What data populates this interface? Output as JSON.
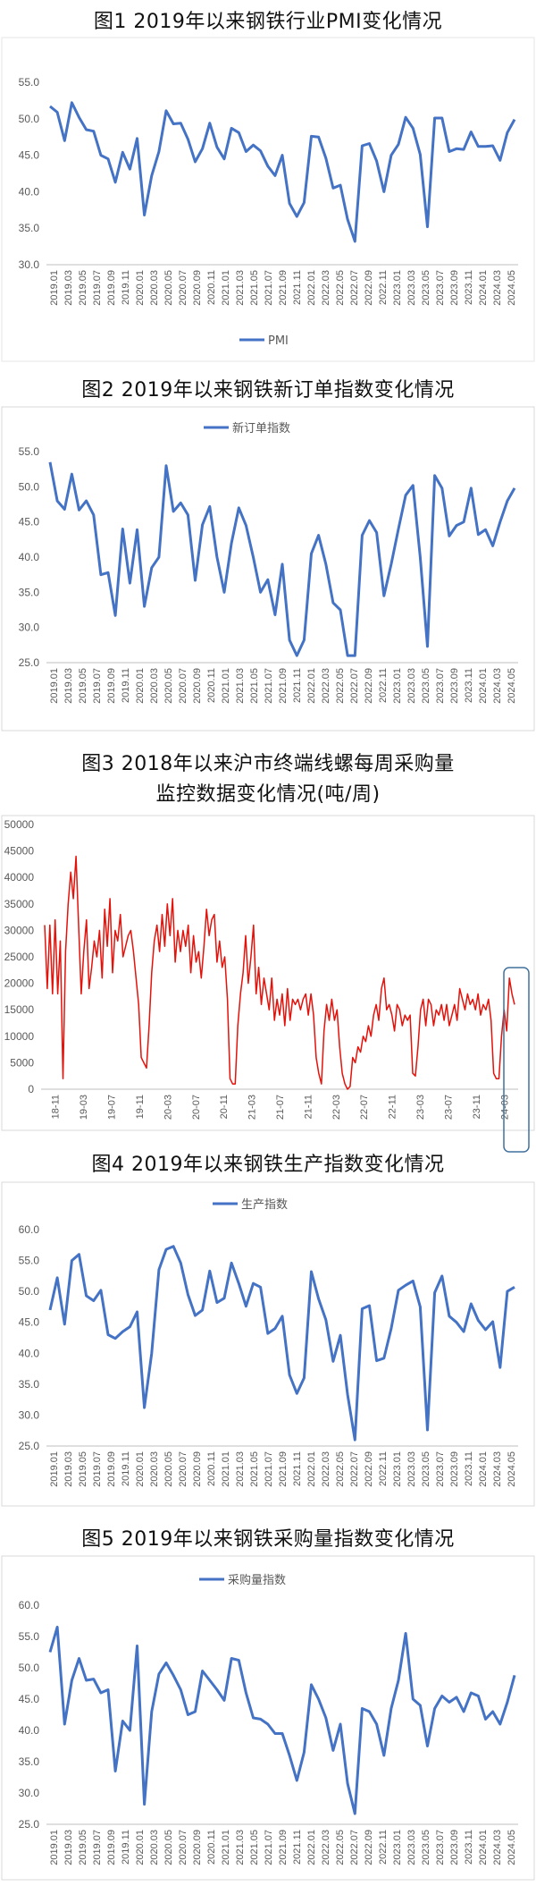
{
  "figures": [
    {
      "title": "图1  2019年以来钢铁行业PMI变化情况"
    },
    {
      "title": "图2  2019年以来钢铁新订单指数变化情况"
    },
    {
      "title_line1": "图3  2018年以来沪市终端线螺每周采购量",
      "title_line2": "监控数据变化情况(吨/周)"
    },
    {
      "title": "图4  2019年以来钢铁生产指数变化情况"
    },
    {
      "title": "图5  2019年以来钢铁采购量指数变化情况"
    }
  ],
  "chart_data": [
    {
      "type": "line",
      "title": "图1  2019年以来钢铁行业PMI变化情况",
      "legend_position": "bottom",
      "grid": false,
      "ylim": [
        30,
        55
      ],
      "yticks": [
        "30.0",
        "35.0",
        "40.0",
        "45.0",
        "50.0",
        "55.0"
      ],
      "xtick_labels": [
        "2019.01",
        "2019.03",
        "2019.05",
        "2019.07",
        "2019.09",
        "2019.11",
        "2020.01",
        "2020.03",
        "2020.05",
        "2020.07",
        "2020.09",
        "2020.11",
        "2021.01",
        "2021.03",
        "2021.05",
        "2021.07",
        "2021.09",
        "2021.11",
        "2022.01",
        "2022.03",
        "2022.05",
        "2022.07",
        "2022.09",
        "2022.11",
        "2023.01",
        "2023.03",
        "2023.05",
        "2023.07",
        "2023.09",
        "2023.11",
        "2024.01",
        "2024.03",
        "2024.05"
      ],
      "series": [
        {
          "name": "PMI",
          "color": "#4472C4",
          "values": [
            51.7,
            50.9,
            47.0,
            52.2,
            50.2,
            48.5,
            48.3,
            45.0,
            44.5,
            41.3,
            45.4,
            43.1,
            47.3,
            36.8,
            42.2,
            45.5,
            51.1,
            49.3,
            49.4,
            47.2,
            44.1,
            45.9,
            49.4,
            46.1,
            44.5,
            48.7,
            48.1,
            45.5,
            46.4,
            45.6,
            43.5,
            42.2,
            45.0,
            38.4,
            36.6,
            38.5,
            47.6,
            47.5,
            44.6,
            40.5,
            40.9,
            36.2,
            33.2,
            46.3,
            46.6,
            44.2,
            40.0,
            45.0,
            46.5,
            50.2,
            48.7,
            45.1,
            35.2,
            50.1,
            50.1,
            45.5,
            45.9,
            45.8,
            48.2,
            46.2,
            46.2,
            46.3,
            44.3,
            48.1,
            49.9
          ]
        }
      ]
    },
    {
      "type": "line",
      "title": "图2  2019年以来钢铁新订单指数变化情况",
      "legend_position": "top",
      "grid": false,
      "ylim": [
        25,
        55
      ],
      "yticks": [
        "25.0",
        "30.0",
        "35.0",
        "40.0",
        "45.0",
        "50.0",
        "55.0"
      ],
      "xtick_labels": [
        "2019.01",
        "2019.03",
        "2019.05",
        "2019.07",
        "2019.09",
        "2019.11",
        "2020.01",
        "2020.03",
        "2020.05",
        "2020.07",
        "2020.09",
        "2020.11",
        "2021.01",
        "2021.03",
        "2021.05",
        "2021.07",
        "2021.09",
        "2021.11",
        "2022.01",
        "2022.03",
        "2022.05",
        "2022.07",
        "2022.09",
        "2022.11",
        "2023.01",
        "2023.03",
        "2023.05",
        "2023.07",
        "2023.09",
        "2023.11",
        "2024.01",
        "2024.03",
        "2024.05"
      ],
      "series": [
        {
          "name": "新订单指数",
          "color": "#4472C4",
          "values": [
            53.5,
            48.0,
            46.8,
            51.8,
            46.7,
            48.0,
            46.0,
            37.5,
            37.8,
            31.7,
            44.0,
            36.3,
            43.9,
            33.0,
            38.5,
            40.0,
            53.0,
            46.5,
            47.7,
            46.0,
            36.7,
            44.6,
            47.2,
            40.0,
            35.0,
            42.0,
            47.0,
            44.5,
            40.0,
            35.0,
            36.8,
            31.8,
            39.0,
            28.2,
            26.0,
            28.2,
            40.5,
            43.1,
            39.0,
            33.5,
            32.5,
            26.0,
            26.0,
            43.1,
            45.2,
            43.5,
            34.5,
            39.0,
            44.0,
            48.8,
            50.2,
            40.0,
            27.3,
            51.6,
            49.8,
            43.0,
            44.5,
            45.0,
            49.8,
            43.2,
            43.9,
            41.6,
            45.0,
            48.0,
            49.8
          ]
        }
      ]
    },
    {
      "type": "line",
      "title": "图3  2018年以来沪市终端线螺每周采购量监控数据变化情况(吨/周)",
      "grid": false,
      "ylim": [
        0,
        50000
      ],
      "yticks": [
        "0",
        "5000",
        "10000",
        "15000",
        "20000",
        "25000",
        "30000",
        "35000",
        "40000",
        "45000",
        "50000"
      ],
      "xtick_labels": [
        "18-11",
        "19-03",
        "19-07",
        "19-11",
        "20-03",
        "20-07",
        "20-11",
        "21-03",
        "21-07",
        "21-11",
        "22-03",
        "22-07",
        "22-11",
        "23-03",
        "23-07",
        "23-11",
        "24-03"
      ],
      "series": [
        {
          "name": "",
          "color": "#E3120B",
          "values": [
            31000,
            19000,
            31000,
            18000,
            32000,
            18000,
            28000,
            2000,
            26000,
            35000,
            41000,
            36000,
            44000,
            31000,
            18000,
            26000,
            32000,
            19000,
            23000,
            28000,
            25000,
            30000,
            21000,
            34000,
            27000,
            36000,
            22000,
            30000,
            28000,
            33000,
            25000,
            27000,
            29000,
            30000,
            26000,
            21000,
            16000,
            6000,
            5000,
            4000,
            12000,
            22000,
            28000,
            31000,
            26000,
            33000,
            27000,
            35000,
            29000,
            36000,
            24000,
            30000,
            26000,
            30000,
            27000,
            31000,
            22000,
            29000,
            24000,
            26000,
            21000,
            27000,
            34000,
            29000,
            32000,
            33000,
            24000,
            28000,
            23000,
            25000,
            17000,
            2000,
            1000,
            1000,
            12000,
            18000,
            22000,
            29000,
            20000,
            25000,
            31000,
            18000,
            23000,
            16000,
            21000,
            18000,
            15000,
            21000,
            13000,
            17000,
            14000,
            18000,
            12000,
            19000,
            13000,
            17000,
            16000,
            17000,
            15000,
            17000,
            18000,
            14000,
            18000,
            14000,
            6000,
            3000,
            1000,
            11000,
            16000,
            13000,
            17000,
            13000,
            15000,
            8000,
            3000,
            1000,
            0,
            500,
            6000,
            5000,
            8000,
            7000,
            10000,
            9000,
            12000,
            10000,
            14000,
            16000,
            13000,
            19000,
            21000,
            15000,
            16000,
            14000,
            11000,
            16000,
            15000,
            12000,
            14000,
            13000,
            14000,
            3000,
            2500,
            8000,
            15000,
            17000,
            12000,
            17000,
            16000,
            12000,
            15000,
            14000,
            16000,
            13000,
            16000,
            12000,
            14000,
            16000,
            13000,
            19000,
            17000,
            15000,
            18000,
            16000,
            17000,
            15000,
            18000,
            14000,
            16000,
            15000,
            17000,
            13000,
            3000,
            2000,
            2000,
            10000,
            15000,
            11000,
            21000,
            18000,
            16000
          ]
        }
      ],
      "highlight_box": "last period (24-03 onward)"
    },
    {
      "type": "line",
      "title": "图4  2019年以来钢铁生产指数变化情况",
      "legend_position": "top",
      "grid": false,
      "ylim": [
        25,
        60
      ],
      "yticks": [
        "25.0",
        "30.0",
        "35.0",
        "40.0",
        "45.0",
        "50.0",
        "55.0",
        "60.0"
      ],
      "xtick_labels": [
        "2019.01",
        "2019.03",
        "2019.05",
        "2019.07",
        "2019.09",
        "2019.11",
        "2020.01",
        "2020.03",
        "2020.05",
        "2020.07",
        "2020.09",
        "2020.11",
        "2021.01",
        "2021.03",
        "2021.05",
        "2021.07",
        "2021.09",
        "2021.11",
        "2022.01",
        "2022.03",
        "2022.05",
        "2022.07",
        "2022.09",
        "2022.11",
        "2023.01",
        "2023.03",
        "2023.05",
        "2023.07",
        "2023.09",
        "2023.11",
        "2024.01",
        "2024.03",
        "2024.05"
      ],
      "series": [
        {
          "name": "生产指数",
          "color": "#4472C4",
          "values": [
            47.0,
            52.2,
            44.7,
            55.0,
            56.0,
            49.3,
            48.5,
            50.2,
            43.0,
            42.4,
            43.5,
            44.3,
            46.7,
            31.2,
            40.0,
            53.5,
            56.8,
            57.3,
            54.6,
            49.5,
            46.1,
            47.0,
            53.3,
            48.2,
            48.9,
            54.6,
            51.3,
            47.6,
            51.3,
            50.7,
            43.2,
            44.0,
            46.0,
            36.5,
            33.5,
            36.0,
            53.2,
            48.8,
            45.4,
            38.7,
            42.9,
            33.3,
            26.0,
            47.2,
            47.7,
            38.8,
            39.2,
            44.0,
            50.2,
            51.0,
            51.7,
            47.5,
            27.6,
            49.8,
            52.5,
            46.0,
            45.0,
            43.5,
            48.0,
            45.3,
            43.8,
            45.1,
            37.7,
            50.0,
            50.7
          ]
        }
      ]
    },
    {
      "type": "line",
      "title": "图5  2019年以来钢铁采购量指数变化情况",
      "legend_position": "top",
      "grid": false,
      "ylim": [
        25,
        60
      ],
      "yticks": [
        "25.0",
        "30.0",
        "35.0",
        "40.0",
        "45.0",
        "50.0",
        "55.0",
        "60.0"
      ],
      "xtick_labels": [
        "2019.01",
        "2019.03",
        "2019.05",
        "2019.07",
        "2019.09",
        "2019.11",
        "2020.01",
        "2020.03",
        "2020.05",
        "2020.07",
        "2020.09",
        "2020.11",
        "2021.01",
        "2021.03",
        "2021.05",
        "2021.07",
        "2021.09",
        "2021.11",
        "2022.01",
        "2022.03",
        "2022.05",
        "2022.07",
        "2022.09",
        "2022.11",
        "2023.01",
        "2023.03",
        "2023.05",
        "2023.07",
        "2023.09",
        "2023.11",
        "2024.01",
        "2024.03",
        "2024.05"
      ],
      "series": [
        {
          "name": "采购量指数",
          "color": "#4472C4",
          "values": [
            52.5,
            56.5,
            41.0,
            48.0,
            51.5,
            48.0,
            48.2,
            46.0,
            46.5,
            33.5,
            41.5,
            40.0,
            53.5,
            28.2,
            43.0,
            49.0,
            50.8,
            48.8,
            46.5,
            42.5,
            43.0,
            49.5,
            48.0,
            46.5,
            44.8,
            51.5,
            51.2,
            46.0,
            42.0,
            41.8,
            41.0,
            39.5,
            39.5,
            36.0,
            32.0,
            36.5,
            47.3,
            45.0,
            42.0,
            36.8,
            41.0,
            31.5,
            26.7,
            43.5,
            43.0,
            41.0,
            36.0,
            43.5,
            48.0,
            55.5,
            45.0,
            44.0,
            37.5,
            43.5,
            45.5,
            44.5,
            45.3,
            43.0,
            46.0,
            45.5,
            41.8,
            43.0,
            41.0,
            44.5,
            48.8
          ]
        }
      ]
    }
  ]
}
